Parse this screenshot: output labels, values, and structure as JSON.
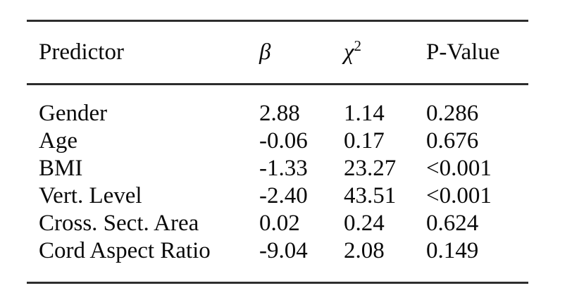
{
  "table": {
    "header": {
      "predictor": "Predictor",
      "beta": "β",
      "chi_base": "χ",
      "chi_sup": "2",
      "p_value": "P-Value"
    },
    "rows": [
      {
        "predictor": "Gender",
        "beta": "2.88",
        "chi2": "1.14",
        "p": "0.286"
      },
      {
        "predictor": "Age",
        "beta": "-0.06",
        "chi2": "0.17",
        "p": "0.676"
      },
      {
        "predictor": "BMI",
        "beta": "-1.33",
        "chi2": "23.27",
        "p": "<0.001"
      },
      {
        "predictor": "Vert. Level",
        "beta": "-2.40",
        "chi2": "43.51",
        "p": "<0.001"
      },
      {
        "predictor": "Cross. Sect. Area",
        "beta": "0.02",
        "chi2": "0.24",
        "p": "0.624"
      },
      {
        "predictor": "Cord Aspect Ratio",
        "beta": "-9.04",
        "chi2": "2.08",
        "p": "0.149"
      }
    ],
    "colors": {
      "rule": "#2d2d2d",
      "text": "#0a0a0a",
      "background": "#ffffff"
    }
  }
}
